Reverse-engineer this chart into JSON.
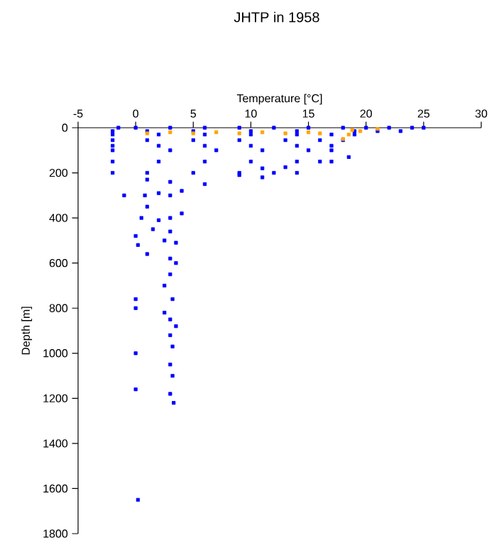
{
  "chart_data": {
    "type": "scatter",
    "title": "JHTP in 1958",
    "xlabel": "Temperature [°C]",
    "ylabel": "Depth [m]",
    "xlim": [
      -5,
      30
    ],
    "xticks": [
      -5,
      0,
      5,
      10,
      15,
      20,
      25,
      30
    ],
    "ylim": [
      1800,
      0
    ],
    "yticks": [
      0,
      200,
      400,
      600,
      800,
      1000,
      1200,
      1400,
      1600,
      1800
    ],
    "marker": "square",
    "series": [
      {
        "color": "#0000ff",
        "x": [
          -1.5,
          0,
          3,
          6,
          9,
          12,
          15,
          18,
          20,
          22,
          24,
          25,
          -2,
          1,
          5,
          10,
          14,
          19,
          21,
          23,
          -2,
          2,
          6,
          10,
          14,
          17,
          19,
          -2,
          1,
          5,
          9,
          13,
          16,
          18,
          -2,
          2,
          6,
          10,
          14,
          17,
          -2,
          3,
          7,
          11,
          15,
          17,
          -2,
          2,
          6,
          10,
          14,
          16,
          -2,
          1,
          5,
          9,
          12,
          14,
          18.5,
          17,
          13,
          11,
          1,
          3,
          6,
          9,
          11,
          4,
          2,
          0.8,
          3,
          -1,
          1,
          0.5,
          2,
          3,
          4,
          1.5,
          3,
          0,
          2.5,
          3.5,
          1,
          3,
          3.5,
          0.2,
          3,
          2.5,
          3.2,
          0,
          0,
          2.5,
          3,
          3.5,
          3,
          0,
          3.2,
          3,
          3.2,
          0,
          3,
          3.3,
          0.2
        ],
        "values": [
          0,
          0,
          0,
          0,
          0,
          0,
          0,
          0,
          0,
          0,
          0,
          0,
          15,
          15,
          15,
          15,
          15,
          15,
          15,
          15,
          30,
          30,
          30,
          30,
          30,
          30,
          30,
          55,
          55,
          55,
          55,
          55,
          55,
          55,
          80,
          80,
          80,
          80,
          80,
          80,
          100,
          100,
          100,
          100,
          100,
          100,
          150,
          150,
          150,
          150,
          150,
          150,
          200,
          200,
          200,
          200,
          200,
          200,
          130,
          150,
          175,
          180,
          230,
          240,
          250,
          210,
          220,
          280,
          290,
          300,
          300,
          300,
          350,
          400,
          410,
          400,
          380,
          450,
          460,
          480,
          500,
          510,
          560,
          580,
          600,
          520,
          650,
          700,
          760,
          760,
          800,
          820,
          850,
          880,
          920,
          1000,
          970,
          1050,
          1100,
          1160,
          1180,
          1220,
          1650
        ]
      },
      {
        "color": "#ffa500",
        "x": [
          1,
          3,
          5,
          7,
          9,
          11,
          13,
          15,
          16,
          18.5,
          18.8,
          19.5,
          21,
          18
        ],
        "values": [
          25,
          20,
          25,
          20,
          25,
          20,
          25,
          20,
          25,
          30,
          10,
          15,
          5,
          50
        ]
      }
    ]
  }
}
